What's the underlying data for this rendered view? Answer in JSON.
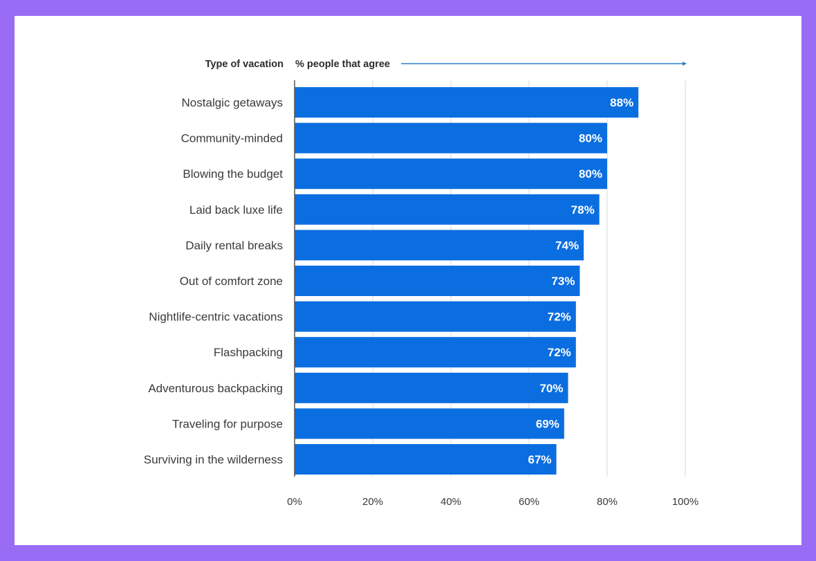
{
  "chart_data": {
    "type": "bar",
    "orientation": "horizontal",
    "header_left": "Type of vacation",
    "header_right": "% people that agree",
    "categories": [
      "Nostalgic getaways",
      "Community-minded",
      "Blowing the budget",
      "Laid back luxe life",
      "Daily rental breaks",
      "Out of comfort zone",
      "Nightlife-centric vacations",
      "Flashpacking",
      "Adventurous backpacking",
      "Traveling for purpose",
      "Surviving in the wilderness"
    ],
    "values": [
      88,
      80,
      80,
      78,
      74,
      73,
      72,
      72,
      70,
      69,
      67
    ],
    "value_labels": [
      "88%",
      "80%",
      "80%",
      "78%",
      "74%",
      "73%",
      "72%",
      "72%",
      "70%",
      "69%",
      "67%"
    ],
    "xlim": [
      0,
      100
    ],
    "xticks": [
      0,
      20,
      40,
      60,
      80,
      100
    ],
    "xtick_labels": [
      "0%",
      "20%",
      "40%",
      "60%",
      "80%",
      "100%"
    ],
    "grid": true,
    "colors": {
      "bar": "#0b6ee0",
      "grid": "#d9d9d9",
      "arrow": "#2a7fc9",
      "frame": "#9a6cf6"
    }
  }
}
